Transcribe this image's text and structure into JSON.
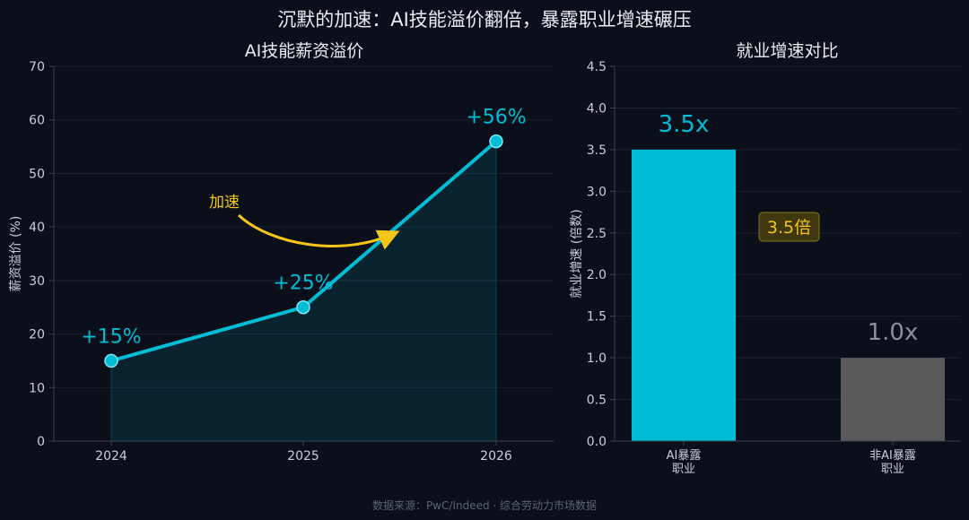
{
  "main_title": "沉默的加速：AI技能溢价翻倍，暴露职业增速碾压",
  "footer": "数据来源：PwC/Indeed · 综合劳动力市场数据",
  "colors": {
    "background": "#0b0f19",
    "accent": "#00bcd4",
    "highlight": "#f5c518",
    "neutral_bar": "#5a5a5a",
    "axis": "#3a4150",
    "grid": "#1a2130",
    "text": "#e6e9ef"
  },
  "chart_data": [
    {
      "type": "line",
      "title": "AI技能薪资溢价",
      "xlabel": "",
      "ylabel": "薪资溢价 (%)",
      "x": [
        "2024",
        "2025",
        "2026"
      ],
      "series": [
        {
          "values": [
            15,
            25,
            56
          ]
        }
      ],
      "data_labels": [
        "+15%",
        "+25%",
        "+56%"
      ],
      "ylim": [
        0,
        70
      ],
      "yticks": [
        "0",
        "10",
        "20",
        "30",
        "40",
        "50",
        "60",
        "70"
      ],
      "grid": true,
      "area_fill": true,
      "annotation": {
        "text": "加速"
      }
    },
    {
      "type": "bar",
      "title": "就业增速对比",
      "xlabel": "",
      "ylabel": "就业增速 (倍数)",
      "categories": [
        [
          "AI暴露",
          "职业"
        ],
        [
          "非AI暴露",
          "职业"
        ]
      ],
      "values": [
        3.5,
        1.0
      ],
      "data_labels": [
        "3.5x",
        "1.0x"
      ],
      "ylim": [
        0,
        4.5
      ],
      "yticks": [
        "0.0",
        "0.5",
        "1.0",
        "1.5",
        "2.0",
        "2.5",
        "3.0",
        "3.5",
        "4.0",
        "4.5"
      ],
      "grid": true,
      "annotation": {
        "text": "3.5倍"
      }
    }
  ]
}
